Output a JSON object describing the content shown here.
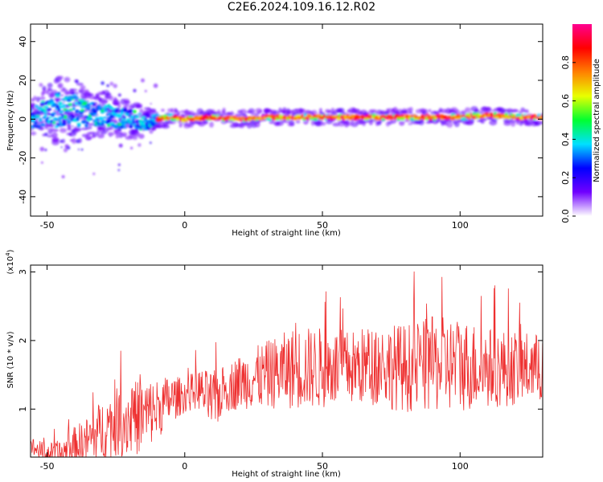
{
  "title": "C2E6.2024.109.16.12.R02",
  "colors": {
    "trace": "#ee3030",
    "frame": "#000000"
  },
  "chart_data": [
    {
      "type": "heatmap",
      "xlabel": "Height of straight line (km)",
      "ylabel": "Frequency (Hz)",
      "xlim": [
        -56,
        130
      ],
      "ylim": [
        -50,
        49
      ],
      "xticks": [
        -50,
        0,
        50,
        100
      ],
      "yticks": [
        -40,
        -20,
        0,
        20,
        40
      ],
      "colorbar": {
        "label": "Normalized spectral amplitude",
        "range": [
          0,
          1
        ],
        "ticks": [
          0.0,
          0.2,
          0.4,
          0.6,
          0.8
        ],
        "colormap": [
          "#ffffff",
          "#7000ff",
          "#0000ff",
          "#00e0ff",
          "#00ff30",
          "#e8ff00",
          "#ff8000",
          "#ff0000",
          "#ff0090"
        ]
      },
      "ridge": {
        "x": [
          -56,
          -50,
          -45,
          -40,
          -35,
          -30,
          -25,
          -20,
          -15,
          -10,
          -5,
          0,
          10,
          20,
          30,
          40,
          50,
          60,
          70,
          80,
          90,
          100,
          110,
          120,
          130
        ],
        "f": [
          2,
          3,
          5,
          4,
          2,
          3,
          1,
          0,
          -2,
          0,
          1,
          0,
          1,
          0,
          1,
          1,
          1,
          1,
          1,
          1,
          1,
          1,
          2,
          1,
          1
        ],
        "spread_hz": [
          6,
          7,
          9,
          8,
          6,
          6,
          5,
          5,
          4,
          2,
          1.5,
          1.5,
          1.5,
          1.5,
          1.5,
          1.5,
          1.5,
          1.5,
          1.5,
          1.5,
          1.5,
          1.5,
          1.5,
          1.5,
          1.5
        ]
      }
    },
    {
      "type": "line",
      "xlabel": "Height of straight line (km)",
      "ylabel": "SNR (10 * v/v)",
      "yscale_label": "(x10",
      "yscale_exponent": "4",
      "xlim": [
        -56,
        130
      ],
      "ylim": [
        0.3,
        3.1
      ],
      "xticks": [
        -50,
        0,
        50,
        100
      ],
      "yticks": [
        1,
        2,
        3
      ],
      "envelope": {
        "x": [
          -56,
          -50,
          -45,
          -40,
          -35,
          -30,
          -25,
          -20,
          -15,
          -10,
          -5,
          0,
          5,
          10,
          15,
          20,
          30,
          40,
          50,
          60,
          70,
          80,
          90,
          100,
          110,
          120,
          130
        ],
        "mean": [
          0.45,
          0.35,
          0.35,
          0.45,
          0.55,
          0.7,
          0.8,
          0.85,
          0.9,
          1.0,
          1.15,
          1.2,
          1.3,
          1.1,
          1.3,
          1.4,
          1.5,
          1.6,
          1.6,
          1.6,
          1.65,
          1.6,
          1.65,
          1.65,
          1.6,
          1.6,
          1.6
        ],
        "amplitude": [
          0.15,
          0.15,
          0.2,
          0.3,
          0.35,
          0.45,
          0.5,
          0.55,
          0.55,
          0.45,
          0.35,
          0.25,
          0.3,
          0.45,
          0.35,
          0.4,
          0.5,
          0.6,
          0.6,
          0.55,
          0.6,
          0.65,
          0.7,
          0.7,
          0.6,
          0.55,
          0.5
        ]
      }
    }
  ]
}
